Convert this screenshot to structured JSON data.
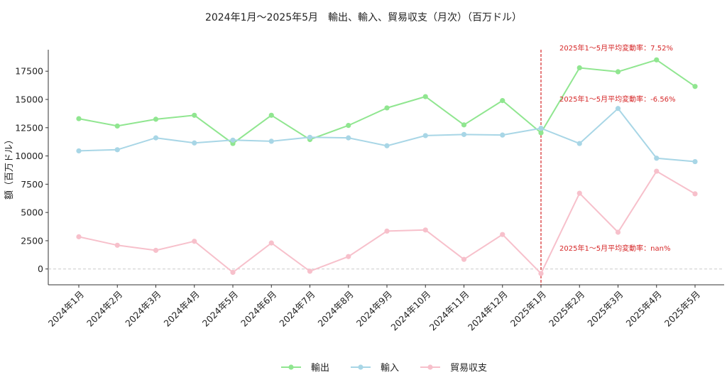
{
  "chart_data": {
    "type": "line",
    "title": "2024年1月～2025年5月　輸出、輸入、貿易収支（月次）（百万ドル）",
    "xlabel": "",
    "ylabel": "額（百万ドル）",
    "categories": [
      "2024年1月",
      "2024年2月",
      "2024年3月",
      "2024年4月",
      "2024年5月",
      "2024年6月",
      "2024年7月",
      "2024年8月",
      "2024年9月",
      "2024年10月",
      "2024年11月",
      "2024年12月",
      "2025年1月",
      "2025年2月",
      "2025年3月",
      "2025年4月",
      "2025年5月"
    ],
    "ylim": [
      -1400,
      19400
    ],
    "yticks": [
      0,
      2500,
      5000,
      7500,
      10000,
      12500,
      15000,
      17500
    ],
    "grid": false,
    "legend_position": "bottom-center",
    "series": [
      {
        "name": "輸出",
        "color": "#90e690",
        "values": [
          13300,
          12650,
          13250,
          13600,
          11100,
          13600,
          11450,
          12700,
          14250,
          15250,
          12750,
          14900,
          12050,
          17800,
          17450,
          18500,
          16150
        ]
      },
      {
        "name": "輸入",
        "color": "#a8d6e6",
        "values": [
          10450,
          10550,
          11600,
          11150,
          11400,
          11300,
          11650,
          11600,
          10900,
          11800,
          11900,
          11850,
          12450,
          11100,
          14200,
          9800,
          9500
        ]
      },
      {
        "name": "貿易収支",
        "color": "#f7c0cb",
        "values": [
          2850,
          2100,
          1650,
          2450,
          -300,
          2300,
          -200,
          1100,
          3350,
          3450,
          850,
          3050,
          -400,
          6700,
          3250,
          8650,
          6650
        ]
      }
    ],
    "reference_line": {
      "category": "2025年1月",
      "color": "#d62728",
      "style": "dashed"
    },
    "zero_line": {
      "value": 0,
      "color": "#cccccc",
      "style": "dashed"
    },
    "annotations": [
      {
        "text": "2025年1～5月平均変動率：7.52%",
        "color": "#d62728"
      },
      {
        "text": "2025年1～5月平均変動率：-6.56%",
        "color": "#d62728"
      },
      {
        "text": "2025年1～5月平均変動率：nan%",
        "color": "#d62728"
      }
    ]
  }
}
